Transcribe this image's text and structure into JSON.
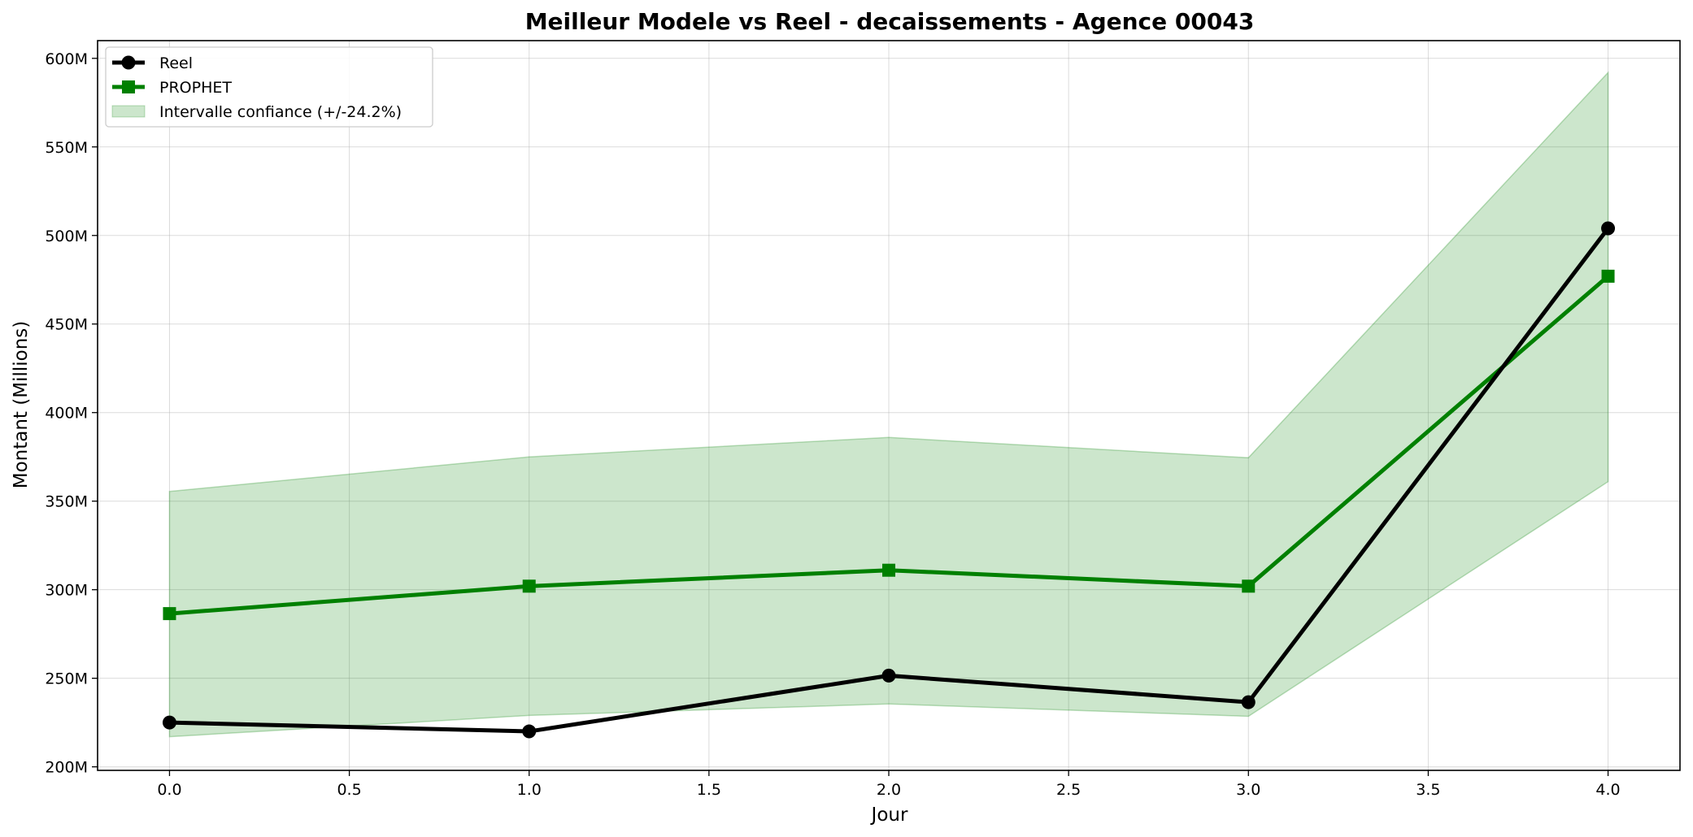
{
  "chart_data": {
    "type": "line",
    "title": "Meilleur Modele vs Reel - decaissements - Agence 00043",
    "xlabel": "Jour",
    "ylabel": "Montant (Millions)",
    "xlim": [
      -0.2,
      4.2
    ],
    "ylim": [
      198,
      610
    ],
    "xticks": [
      0.0,
      0.5,
      1.0,
      1.5,
      2.0,
      2.5,
      3.0,
      3.5,
      4.0
    ],
    "xtick_labels": [
      "0.0",
      "0.5",
      "1.0",
      "1.5",
      "2.0",
      "2.5",
      "3.0",
      "3.5",
      "4.0"
    ],
    "yticks": [
      200,
      250,
      300,
      350,
      400,
      450,
      500,
      550,
      600
    ],
    "ytick_labels": [
      "200M",
      "250M",
      "300M",
      "350M",
      "400M",
      "450M",
      "500M",
      "550M",
      "600M"
    ],
    "grid": true,
    "legend_position": "top-left",
    "x": [
      0,
      1,
      2,
      3,
      4
    ],
    "series": [
      {
        "name": "Reel",
        "values": [
          225,
          220,
          251.5,
          236.5,
          504
        ],
        "color": "#000000",
        "marker": "circle"
      },
      {
        "name": "PROPHET",
        "values": [
          286.5,
          302,
          311,
          302,
          477
        ],
        "color": "#008000",
        "marker": "square"
      }
    ],
    "band": {
      "name": "Intervalle confiance (+/-24.2%)",
      "lower": [
        217,
        229,
        235.5,
        228.5,
        361
      ],
      "upper": [
        355.5,
        375,
        386,
        374.5,
        592
      ],
      "color": "#008000"
    }
  }
}
